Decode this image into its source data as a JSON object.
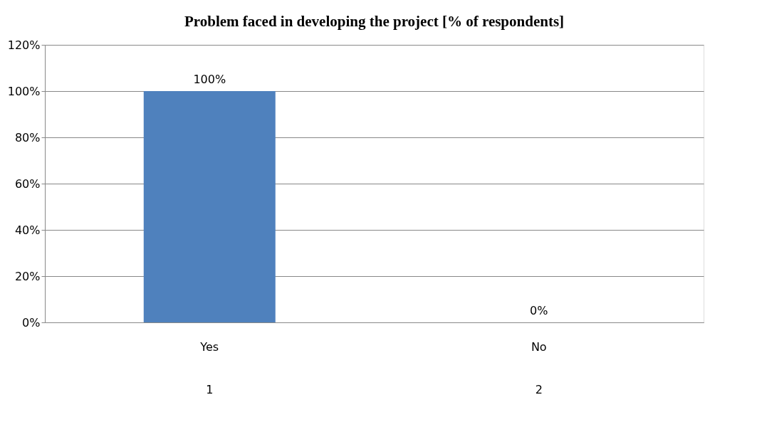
{
  "chart_data": {
    "type": "bar",
    "title": "Problem faced in developing the project [% of respondents]",
    "categories": [
      "Yes",
      "No"
    ],
    "values": [
      100,
      0
    ],
    "color": "#4f81bd",
    "value_labels": [
      "100%",
      "0%"
    ],
    "ylim": [
      0,
      120
    ],
    "yticks": [
      {
        "value": 0,
        "label": "0%"
      },
      {
        "value": 20,
        "label": "20%"
      },
      {
        "value": 40,
        "label": "40%"
      },
      {
        "value": 60,
        "label": "60%"
      },
      {
        "value": 80,
        "label": "80%"
      },
      {
        "value": 100,
        "label": "100%"
      },
      {
        "value": 120,
        "label": "120%"
      }
    ],
    "grid": "y",
    "annotations": [
      "1",
      "2"
    ]
  }
}
